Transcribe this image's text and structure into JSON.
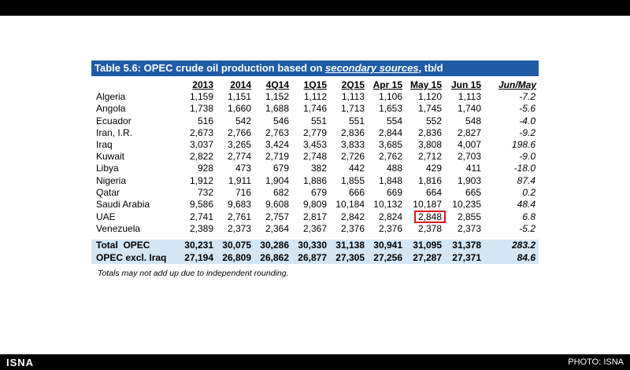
{
  "title": {
    "prefix": "Table 5.6: OPEC crude oil production based on ",
    "emphasis": "secondary sources",
    "suffix": ", tb/d"
  },
  "columns": [
    "2013",
    "2014",
    "4Q14",
    "1Q15",
    "2Q15",
    "Apr 15",
    "May 15",
    "Jun 15",
    "Jun/May"
  ],
  "rows": [
    {
      "country": "Algeria",
      "values": [
        "1,159",
        "1,151",
        "1,152",
        "1,112",
        "1,113",
        "1,106",
        "1,120",
        "1,113"
      ],
      "change": "-7.2"
    },
    {
      "country": "Angola",
      "values": [
        "1,738",
        "1,660",
        "1,688",
        "1,746",
        "1,713",
        "1,653",
        "1,745",
        "1,740"
      ],
      "change": "-5.6"
    },
    {
      "country": "Ecuador",
      "values": [
        "516",
        "542",
        "546",
        "551",
        "551",
        "554",
        "552",
        "548"
      ],
      "change": "-4.0"
    },
    {
      "country": "Iran, I.R.",
      "values": [
        "2,673",
        "2,766",
        "2,763",
        "2,779",
        "2,836",
        "2,844",
        "2,836",
        "2,827"
      ],
      "change": "-9.2"
    },
    {
      "country": "Iraq",
      "values": [
        "3,037",
        "3,265",
        "3,424",
        "3,453",
        "3,833",
        "3,685",
        "3,808",
        "4,007"
      ],
      "change": "198.6"
    },
    {
      "country": "Kuwait",
      "values": [
        "2,822",
        "2,774",
        "2,719",
        "2,748",
        "2,726",
        "2,762",
        "2,712",
        "2,703"
      ],
      "change": "-9.0"
    },
    {
      "country": "Libya",
      "values": [
        "928",
        "473",
        "679",
        "382",
        "442",
        "488",
        "429",
        "411"
      ],
      "change": "-18.0"
    },
    {
      "country": "Nigeria",
      "values": [
        "1,912",
        "1,911",
        "1,904",
        "1,886",
        "1,855",
        "1,848",
        "1,816",
        "1,903"
      ],
      "change": "87.4"
    },
    {
      "country": "Qatar",
      "values": [
        "732",
        "716",
        "682",
        "679",
        "666",
        "669",
        "664",
        "665"
      ],
      "change": "0.2"
    },
    {
      "country": "Saudi Arabia",
      "values": [
        "9,586",
        "9,683",
        "9,608",
        "9,809",
        "10,184",
        "10,132",
        "10,187",
        "10,235"
      ],
      "change": "48.4"
    },
    {
      "country": "UAE",
      "values": [
        "2,741",
        "2,761",
        "2,757",
        "2,817",
        "2,842",
        "2,824",
        "2,848",
        "2,855"
      ],
      "change": "6.8"
    },
    {
      "country": "Venezuela",
      "values": [
        "2,389",
        "2,373",
        "2,364",
        "2,367",
        "2,376",
        "2,376",
        "2,378",
        "2,373"
      ],
      "change": "-5.2"
    }
  ],
  "totals": [
    {
      "label": "Total  OPEC",
      "values": [
        "30,231",
        "30,075",
        "30,286",
        "30,330",
        "31,138",
        "30,941",
        "31,095",
        "31,378"
      ],
      "change": "283.2"
    },
    {
      "label": "OPEC excl. Iraq",
      "values": [
        "27,194",
        "26,809",
        "26,862",
        "26,877",
        "27,305",
        "27,256",
        "27,287",
        "27,371"
      ],
      "change": "84.6"
    }
  ],
  "highlight": {
    "row": 10,
    "col": 6,
    "color": "#e0141e"
  },
  "note": "Totals may not add up due to independent rounding.",
  "footer": {
    "brand": "ISNA",
    "credit": "PHOTO: ISNA"
  },
  "colors": {
    "title_bg": "#1f5ba7",
    "total_bg": "#d4e6f4"
  }
}
